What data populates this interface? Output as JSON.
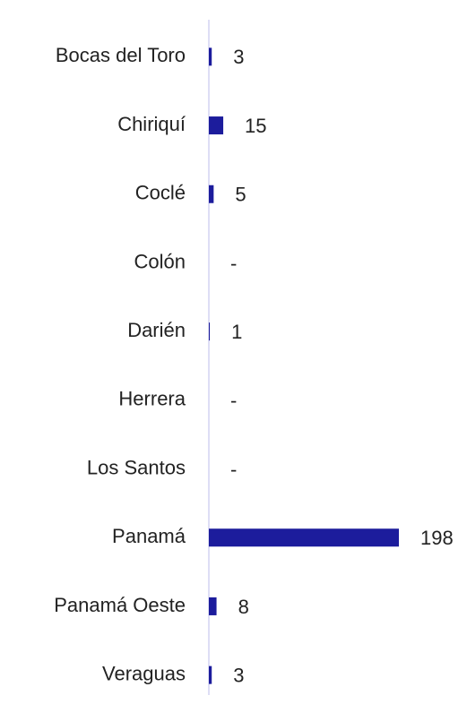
{
  "chart_data": {
    "type": "hbar",
    "categories": [
      "Bocas del Toro",
      "Chiriquí",
      "Coclé",
      "Colón",
      "Darién",
      "Herrera",
      "Los Santos",
      "Panamá",
      "Panamá Oeste",
      "Veraguas"
    ],
    "values": [
      3,
      15,
      5,
      0,
      1,
      0,
      0,
      198,
      8,
      3
    ],
    "value_labels": [
      "3",
      "15",
      "5",
      "-",
      "1",
      "-",
      "-",
      "198",
      "8",
      "3"
    ],
    "color": "#1c1c9c"
  }
}
